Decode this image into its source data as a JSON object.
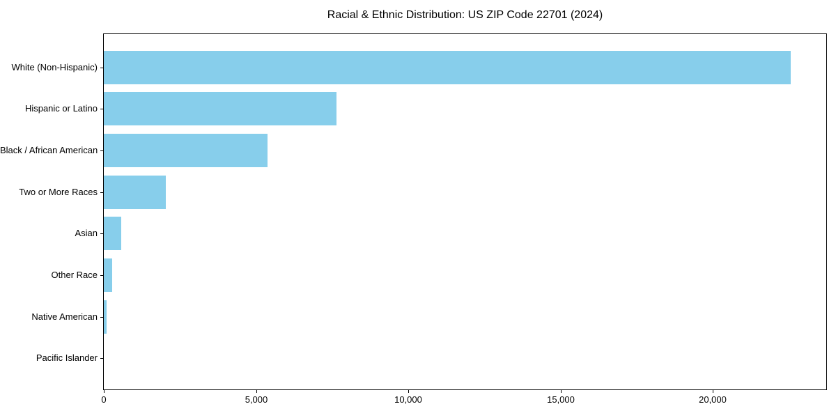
{
  "figure": {
    "background": "#ffffff",
    "text_color": "#000000"
  },
  "chart_data": {
    "type": "bar",
    "orientation": "horizontal",
    "title": "Racial & Ethnic Distribution: US ZIP Code 22701 (2024)",
    "categories": [
      "White (Non-Hispanic)",
      "Hispanic or Latino",
      "Black / African American",
      "Two or More Races",
      "Asian",
      "Other Race",
      "Native American",
      "Pacific Islander"
    ],
    "values": [
      22550,
      7650,
      5370,
      2030,
      570,
      275,
      100,
      0
    ],
    "bar_color": "#87CEEB",
    "xlabel": "",
    "ylabel": "",
    "xlim": [
      0,
      23722
    ],
    "x_ticks": [
      0,
      5000,
      10000,
      15000,
      20000
    ],
    "x_tick_labels": [
      "0",
      "5,000",
      "10,000",
      "15,000",
      "20,000"
    ],
    "grid": false,
    "legend": null,
    "axis_color": "#000000"
  }
}
